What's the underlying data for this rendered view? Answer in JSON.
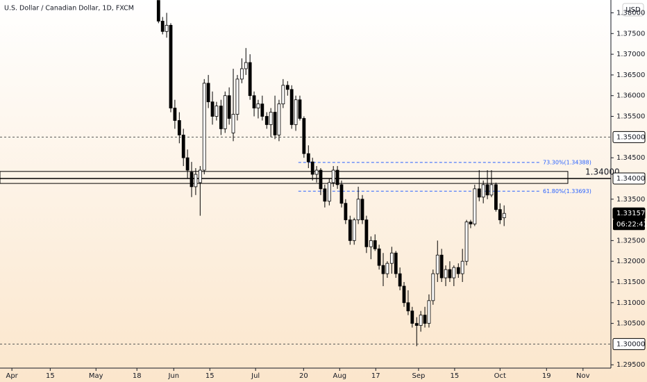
{
  "chart_data": {
    "type": "candlestick",
    "title": "U.S. Dollar / Canadian Dollar, 1D, FXCM",
    "currency": "USD",
    "xlim": [
      -3.2,
      161
    ],
    "ylim": [
      1.2942,
      1.3831
    ],
    "xticks": [
      {
        "value": 0,
        "label": "Apr"
      },
      {
        "value": 10.3,
        "label": "15"
      },
      {
        "value": 22.6,
        "label": "May"
      },
      {
        "value": 33.6,
        "label": "18"
      },
      {
        "value": 43.5,
        "label": "Jun"
      },
      {
        "value": 53.2,
        "label": "15"
      },
      {
        "value": 65.5,
        "label": "Jul"
      },
      {
        "value": 78.4,
        "label": "20"
      },
      {
        "value": 88.1,
        "label": "Aug"
      },
      {
        "value": 97.8,
        "label": "17"
      },
      {
        "value": 109.3,
        "label": "Sep"
      },
      {
        "value": 119,
        "label": "15"
      },
      {
        "value": 131.2,
        "label": "Oct"
      },
      {
        "value": 143.7,
        "label": "19"
      },
      {
        "value": 153.5,
        "label": "Nov"
      }
    ],
    "yticks": [
      {
        "value": 1.38,
        "label": "1.38000"
      },
      {
        "value": 1.375,
        "label": "1.37500"
      },
      {
        "value": 1.37,
        "label": "1.37000"
      },
      {
        "value": 1.365,
        "label": "1.36500"
      },
      {
        "value": 1.36,
        "label": "1.36000"
      },
      {
        "value": 1.355,
        "label": "1.35500"
      },
      {
        "value": 1.345,
        "label": "1.34500"
      },
      {
        "value": 1.335,
        "label": "1.33500"
      },
      {
        "value": 1.325,
        "label": "1.32500"
      },
      {
        "value": 1.32,
        "label": "1.32000"
      },
      {
        "value": 1.315,
        "label": "1.31500"
      },
      {
        "value": 1.31,
        "label": "1.31000"
      },
      {
        "value": 1.305,
        "label": "1.30500"
      },
      {
        "value": 1.295,
        "label": "1.29500"
      }
    ],
    "levels": [
      {
        "value": 1.35,
        "label": "1.35000"
      },
      {
        "value": 1.3,
        "label": "1.30000"
      }
    ],
    "zone": {
      "top": 1.3417,
      "bottom": 1.3388,
      "level": {
        "value": 1.34,
        "label": "1.34000"
      }
    },
    "fib": [
      {
        "value": 1.34388,
        "label": "73.30%(1.34388)",
        "start": 77
      },
      {
        "value": 1.33693,
        "label": "61.80%(1.33693)",
        "start": 77
      }
    ],
    "last_price": {
      "value": 1.33157,
      "label": "1.33157"
    },
    "countdown": "06:22:41",
    "up_color": "#ffffff",
    "down_color": "#000000",
    "fib_color": "#2962ff",
    "x": [
      39.4,
      40.5,
      41.6,
      42.7,
      43.8,
      45.0,
      46.1,
      47.2,
      48.3,
      49.4,
      50.6,
      51.7,
      52.8,
      53.9,
      55.0,
      56.2,
      57.3,
      58.4,
      59.5,
      60.6,
      61.8,
      62.9,
      64.0,
      65.1,
      66.2,
      67.3,
      68.5,
      69.6,
      70.7,
      71.8,
      72.9,
      74.1,
      75.2,
      76.3,
      77.4,
      78.5,
      79.7,
      80.8,
      81.9,
      83.0,
      84.1,
      85.3,
      86.4,
      87.5,
      88.6,
      89.7,
      90.9,
      92.0,
      93.1,
      94.2,
      95.3,
      96.5,
      97.6,
      98.7,
      99.8,
      100.9,
      102.1,
      103.2,
      104.3,
      105.4,
      106.5,
      107.6,
      108.8,
      109.9,
      111.0,
      112.1,
      113.2,
      114.4,
      115.5,
      116.6,
      117.7,
      118.8,
      120.0,
      121.1,
      122.2,
      123.3,
      124.4,
      125.6,
      126.7,
      127.8,
      128.9,
      130.1,
      131.2,
      132.3
    ],
    "open": [
      1.383,
      1.378,
      1.3755,
      1.377,
      1.357,
      1.354,
      1.3505,
      1.345,
      1.3415,
      1.338,
      1.339,
      1.342,
      1.363,
      1.3585,
      1.355,
      1.3575,
      1.352,
      1.36,
      1.351,
      1.3555,
      1.364,
      1.3665,
      1.368,
      1.36,
      1.357,
      1.358,
      1.355,
      1.353,
      1.356,
      1.3505,
      1.358,
      1.3625,
      1.3615,
      1.353,
      1.359,
      1.3545,
      1.346,
      1.344,
      1.341,
      1.342,
      1.3375,
      1.3345,
      1.339,
      1.342,
      1.3385,
      1.334,
      1.33,
      1.325,
      1.33,
      1.335,
      1.33,
      1.3235,
      1.325,
      1.323,
      1.319,
      1.317,
      1.3195,
      1.322,
      1.317,
      1.314,
      1.31,
      1.308,
      1.305,
      1.3045,
      1.307,
      1.305,
      1.3105,
      1.317,
      1.3215,
      1.316,
      1.318,
      1.316,
      1.3185,
      1.317,
      1.32,
      1.3295,
      1.329,
      1.3375,
      1.3355,
      1.3385,
      1.336,
      1.3385,
      1.3325,
      1.3305
    ],
    "high": [
      1.383,
      1.379,
      1.38,
      1.3775,
      1.359,
      1.356,
      1.352,
      1.347,
      1.344,
      1.3425,
      1.343,
      1.364,
      1.365,
      1.361,
      1.3585,
      1.359,
      1.361,
      1.362,
      1.3665,
      1.365,
      1.369,
      1.3715,
      1.37,
      1.361,
      1.359,
      1.36,
      1.356,
      1.357,
      1.36,
      1.359,
      1.364,
      1.3635,
      1.3625,
      1.36,
      1.36,
      1.355,
      1.348,
      1.345,
      1.343,
      1.3425,
      1.3385,
      1.34,
      1.343,
      1.343,
      1.3395,
      1.335,
      1.331,
      1.3305,
      1.338,
      1.336,
      1.331,
      1.326,
      1.3265,
      1.324,
      1.322,
      1.32,
      1.3235,
      1.3225,
      1.3185,
      1.315,
      1.313,
      1.309,
      1.3065,
      1.308,
      1.309,
      1.312,
      1.318,
      1.325,
      1.323,
      1.319,
      1.32,
      1.319,
      1.3195,
      1.323,
      1.33,
      1.33,
      1.3385,
      1.342,
      1.3395,
      1.342,
      1.342,
      1.339,
      1.334,
      1.3335
    ],
    "low": [
      1.3775,
      1.3748,
      1.374,
      1.356,
      1.352,
      1.3485,
      1.343,
      1.34,
      1.3355,
      1.336,
      1.331,
      1.341,
      1.357,
      1.353,
      1.354,
      1.3505,
      1.351,
      1.353,
      1.349,
      1.354,
      1.363,
      1.365,
      1.359,
      1.355,
      1.3545,
      1.354,
      1.352,
      1.35,
      1.3495,
      1.349,
      1.357,
      1.36,
      1.352,
      1.3515,
      1.354,
      1.345,
      1.3425,
      1.3395,
      1.339,
      1.336,
      1.333,
      1.3335,
      1.338,
      1.3375,
      1.333,
      1.329,
      1.324,
      1.324,
      1.329,
      1.329,
      1.322,
      1.3205,
      1.3225,
      1.318,
      1.314,
      1.316,
      1.317,
      1.316,
      1.313,
      1.309,
      1.307,
      1.304,
      1.2995,
      1.303,
      1.304,
      1.304,
      1.3095,
      1.315,
      1.315,
      1.314,
      1.315,
      1.314,
      1.316,
      1.315,
      1.319,
      1.328,
      1.3285,
      1.3345,
      1.334,
      1.335,
      1.3355,
      1.332,
      1.329,
      1.3285
    ],
    "close": [
      1.378,
      1.3755,
      1.377,
      1.357,
      1.354,
      1.3505,
      1.345,
      1.342,
      1.338,
      1.341,
      1.342,
      1.363,
      1.3585,
      1.355,
      1.3575,
      1.352,
      1.36,
      1.3545,
      1.3555,
      1.364,
      1.3665,
      1.368,
      1.36,
      1.357,
      1.358,
      1.355,
      1.353,
      1.356,
      1.3505,
      1.358,
      1.3625,
      1.3615,
      1.353,
      1.359,
      1.3545,
      1.346,
      1.344,
      1.341,
      1.342,
      1.3375,
      1.3345,
      1.339,
      1.342,
      1.3385,
      1.334,
      1.33,
      1.325,
      1.33,
      1.335,
      1.33,
      1.3235,
      1.325,
      1.323,
      1.319,
      1.317,
      1.3195,
      1.322,
      1.317,
      1.314,
      1.31,
      1.308,
      1.305,
      1.3045,
      1.307,
      1.305,
      1.3105,
      1.317,
      1.3215,
      1.316,
      1.318,
      1.316,
      1.3185,
      1.317,
      1.32,
      1.3295,
      1.329,
      1.3375,
      1.3355,
      1.3385,
      1.336,
      1.3385,
      1.3325,
      1.33,
      1.33157
    ]
  }
}
